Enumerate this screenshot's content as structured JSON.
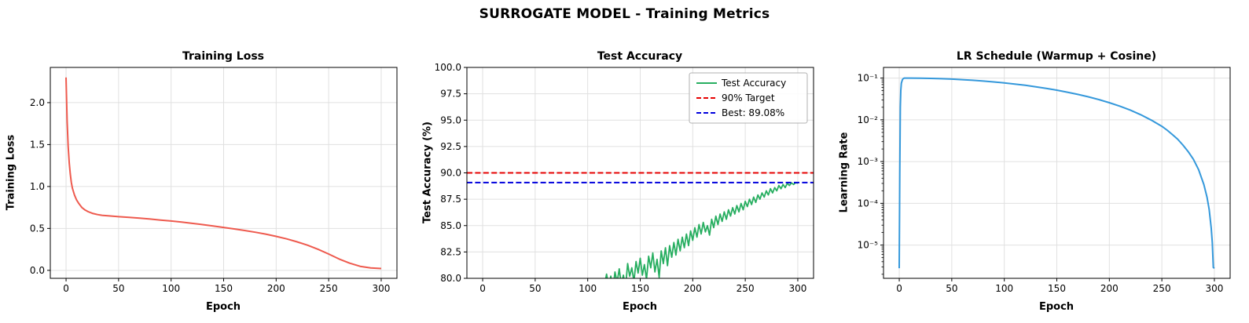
{
  "figure": {
    "title": "SURROGATE MODEL - Training Metrics"
  },
  "style": {
    "background": "#ffffff",
    "grid_color": "#e0e0e0",
    "axis_color": "#000000",
    "loss_color": "#ee5a4e",
    "accuracy_color": "#27ae60",
    "target_color": "#e60000",
    "best_color": "#0000dd",
    "lr_color": "#3498db"
  },
  "chart_data": [
    {
      "type": "line",
      "title": "Training Loss",
      "xlabel": "Epoch",
      "ylabel": "Training Loss",
      "xlim": [
        -15,
        315
      ],
      "ylim": [
        -0.095,
        2.42
      ],
      "yscale": "linear",
      "grid": true,
      "xticks": [
        0,
        50,
        100,
        150,
        200,
        250,
        300
      ],
      "yticks": [
        0.0,
        0.5,
        1.0,
        1.5,
        2.0
      ],
      "ytick_labels": [
        "0.0",
        "0.5",
        "1.0",
        "1.5",
        "2.0"
      ],
      "series": [
        {
          "name": "Training Loss",
          "color": "#ee5a4e",
          "dash": "solid",
          "width": 2,
          "x": [
            0,
            1,
            2,
            3,
            4,
            5,
            6,
            8,
            10,
            12,
            15,
            18,
            21,
            25,
            30,
            35,
            40,
            50,
            60,
            70,
            80,
            90,
            100,
            110,
            120,
            130,
            140,
            150,
            160,
            170,
            180,
            190,
            200,
            210,
            220,
            230,
            240,
            250,
            260,
            270,
            280,
            290,
            300
          ],
          "y": [
            2.3,
            1.78,
            1.48,
            1.28,
            1.15,
            1.05,
            0.98,
            0.9,
            0.84,
            0.8,
            0.75,
            0.72,
            0.7,
            0.68,
            0.665,
            0.655,
            0.65,
            0.64,
            0.632,
            0.622,
            0.612,
            0.6,
            0.588,
            0.575,
            0.56,
            0.545,
            0.53,
            0.512,
            0.494,
            0.475,
            0.455,
            0.432,
            0.405,
            0.375,
            0.34,
            0.3,
            0.25,
            0.195,
            0.135,
            0.085,
            0.048,
            0.028,
            0.022
          ]
        }
      ]
    },
    {
      "type": "line",
      "title": "Test Accuracy",
      "xlabel": "Epoch",
      "ylabel": "Test Accuracy (%)",
      "xlim": [
        -15,
        315
      ],
      "ylim": [
        80,
        100
      ],
      "yscale": "linear",
      "grid": true,
      "xticks": [
        0,
        50,
        100,
        150,
        200,
        250,
        300
      ],
      "yticks": [
        80.0,
        82.5,
        85.0,
        87.5,
        90.0,
        92.5,
        95.0,
        97.5,
        100.0
      ],
      "ytick_labels": [
        "80.0",
        "82.5",
        "85.0",
        "87.5",
        "90.0",
        "92.5",
        "95.0",
        "97.5",
        "100.0"
      ],
      "legend": {
        "position": "upper right",
        "entries": [
          {
            "label": "Test Accuracy",
            "color": "#27ae60",
            "dash": "solid"
          },
          {
            "label": "90% Target",
            "color": "#e60000",
            "dash": "dashed"
          },
          {
            "label": "Best: 89.08%",
            "color": "#0000dd",
            "dash": "dashed"
          }
        ]
      },
      "series": [
        {
          "name": "Test Accuracy",
          "color": "#27ae60",
          "dash": "solid",
          "width": 1.8,
          "x": [
            100,
            103,
            106,
            109,
            112,
            115,
            118,
            120,
            122,
            124,
            126,
            128,
            130,
            132,
            134,
            136,
            138,
            140,
            142,
            144,
            146,
            148,
            150,
            152,
            154,
            156,
            158,
            160,
            162,
            164,
            166,
            168,
            170,
            172,
            174,
            176,
            178,
            180,
            182,
            184,
            186,
            188,
            190,
            192,
            194,
            196,
            198,
            200,
            202,
            204,
            206,
            208,
            210,
            212,
            214,
            216,
            218,
            220,
            222,
            224,
            226,
            228,
            230,
            232,
            234,
            236,
            238,
            240,
            242,
            244,
            246,
            248,
            250,
            252,
            254,
            256,
            258,
            260,
            262,
            264,
            266,
            268,
            270,
            272,
            274,
            276,
            278,
            280,
            282,
            284,
            286,
            288,
            290,
            292,
            294,
            296,
            298,
            300
          ],
          "y": [
            78.3,
            77.8,
            78.9,
            78.2,
            79.4,
            78.8,
            80.4,
            79.3,
            80.2,
            79.0,
            80.6,
            79.6,
            80.9,
            79.4,
            80.3,
            79.1,
            81.4,
            80.2,
            81.0,
            79.7,
            81.6,
            80.5,
            81.9,
            80.3,
            81.3,
            79.9,
            82.1,
            81.0,
            82.4,
            80.6,
            81.8,
            80.1,
            82.6,
            81.4,
            82.9,
            81.2,
            83.1,
            82.0,
            83.4,
            82.2,
            83.7,
            82.6,
            83.9,
            82.9,
            84.2,
            83.1,
            84.5,
            83.6,
            84.8,
            83.9,
            85.1,
            84.2,
            85.3,
            84.4,
            85.0,
            84.1,
            85.6,
            84.8,
            85.9,
            85.1,
            86.1,
            85.4,
            86.3,
            85.6,
            86.5,
            85.9,
            86.7,
            86.1,
            86.9,
            86.3,
            87.1,
            86.5,
            87.3,
            86.8,
            87.5,
            87.0,
            87.7,
            87.2,
            87.9,
            87.5,
            88.1,
            87.7,
            88.3,
            87.9,
            88.5,
            88.1,
            88.6,
            88.3,
            88.8,
            88.5,
            88.9,
            88.6,
            89.0,
            88.8,
            89.05,
            88.9,
            89.08,
            89.02
          ]
        },
        {
          "name": "90% Target",
          "color": "#e60000",
          "dash": "dashed",
          "width": 2,
          "x": [
            -15,
            315
          ],
          "y": [
            90,
            90
          ]
        },
        {
          "name": "Best: 89.08%",
          "color": "#0000dd",
          "dash": "dashed",
          "width": 2,
          "x": [
            -15,
            315
          ],
          "y": [
            89.08,
            89.08
          ]
        }
      ]
    },
    {
      "type": "line",
      "title": "LR Schedule (Warmup + Cosine)",
      "xlabel": "Epoch",
      "ylabel": "Learning Rate",
      "xlim": [
        -15,
        315
      ],
      "ylim": [
        1.6e-06,
        0.18
      ],
      "yscale": "log",
      "grid": true,
      "xticks": [
        0,
        50,
        100,
        150,
        200,
        250,
        300
      ],
      "yticks": [
        1e-05,
        0.0001,
        0.001,
        0.01,
        0.1
      ],
      "ytick_labels": [
        "10⁻⁵",
        "10⁻⁴",
        "10⁻³",
        "10⁻²",
        "10⁻¹"
      ],
      "series": [
        {
          "name": "Learning Rate",
          "color": "#3498db",
          "dash": "solid",
          "width": 2,
          "x": [
            0,
            0.5,
            1,
            1.5,
            2,
            3,
            4,
            5,
            10,
            20,
            30,
            40,
            50,
            60,
            70,
            80,
            90,
            100,
            110,
            120,
            130,
            140,
            150,
            160,
            170,
            180,
            190,
            200,
            210,
            220,
            230,
            240,
            250,
            255,
            260,
            265,
            270,
            275,
            280,
            285,
            290,
            293,
            295,
            297,
            298,
            299,
            300
          ],
          "y": [
            2.8e-06,
            0.0005,
            0.02,
            0.05,
            0.075,
            0.092,
            0.098,
            0.1,
            0.0999,
            0.0994,
            0.0982,
            0.0966,
            0.0944,
            0.0917,
            0.0885,
            0.0849,
            0.0809,
            0.0765,
            0.0718,
            0.0671,
            0.0619,
            0.0566,
            0.0513,
            0.046,
            0.0407,
            0.0356,
            0.0306,
            0.0257,
            0.0213,
            0.0171,
            0.0132,
            0.0098,
            0.007,
            0.00566,
            0.00445,
            0.00344,
            0.00249,
            0.00175,
            0.00114,
            0.00064,
            0.00028,
            0.00014,
            7.2e-05,
            2.6e-05,
            1.15e-05,
            2.9e-06,
            2.8e-06
          ]
        }
      ]
    }
  ]
}
